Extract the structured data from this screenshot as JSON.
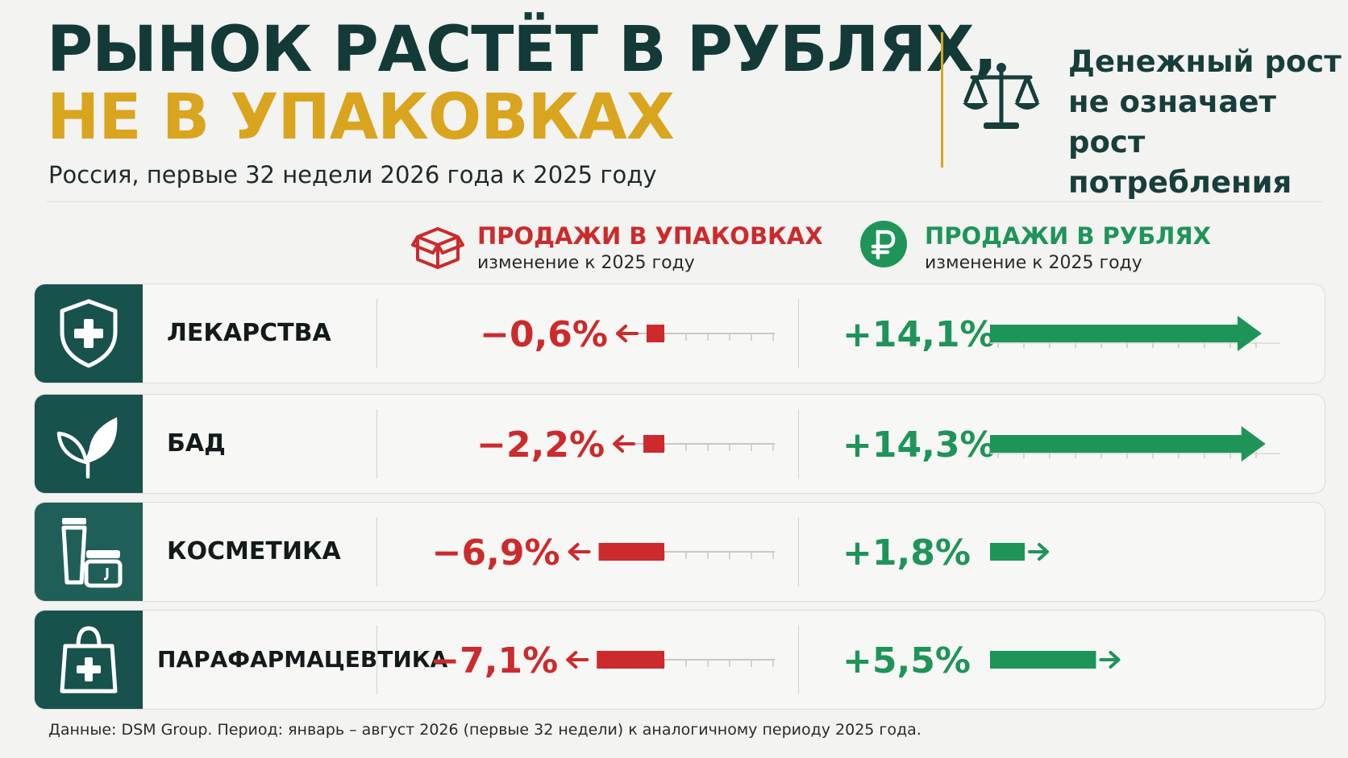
{
  "header": {
    "title_line1": "РЫНОК РАСТЁТ В РУБЛЯХ,",
    "title_line2": "НЕ В УПАКОВКАХ",
    "subtitle": "Россия, первые 32 недели 2026 года к 2025 году",
    "note_lines": [
      "Денежный рост",
      "не означает",
      "рост потребления"
    ],
    "note_icon": "scales-icon"
  },
  "columns": {
    "units": {
      "title": "ПРОДАЖИ В УПАКОВКАХ",
      "subtitle": "изменение к 2025 году",
      "icon": "box-icon",
      "color": "#cc2a2c"
    },
    "rubles": {
      "title": "ПРОДАЖИ В РУБЛЯХ",
      "subtitle": "изменение к 2025 году",
      "icon": "ruble-icon",
      "color": "#1f9459"
    }
  },
  "chart_data": {
    "type": "bar",
    "categories": [
      "ЛЕКАРСТВА",
      "БАД",
      "КОСМЕТИКА",
      "ПАРАФАРМАЦЕВТИКА"
    ],
    "category_icons": [
      "shield-cross-icon",
      "leaf-icon",
      "cosmetics-icon",
      "bag-cross-icon"
    ],
    "series": [
      {
        "values": [
          -0.6,
          -2.2,
          -6.9,
          -7.1
        ],
        "labels": [
          "−0,6%",
          "−2,2%",
          "−6,9%",
          "−7,1%"
        ],
        "color": "#cc2a2c"
      },
      {
        "values": [
          14.1,
          14.3,
          1.8,
          5.5
        ],
        "labels": [
          "+14,1%",
          "+14,3%",
          "+1,8%",
          "+5,5%"
        ],
        "color": "#1f9459"
      }
    ]
  },
  "footer": "Данные: DSM Group. Период: январь – август 2026 (первые 32 недели) к аналогичному периоду 2025 года."
}
